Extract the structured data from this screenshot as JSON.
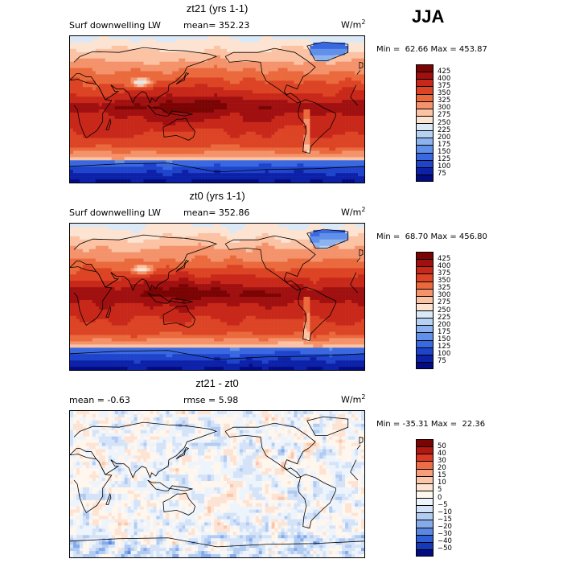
{
  "season": "JJA",
  "panels": [
    {
      "title": "zt21 (yrs 1-1)",
      "variable": "Surf downwelling LW",
      "stat1": "mean= 352.23",
      "stat2": "",
      "units": "W/m",
      "units_exp": "2",
      "min": "Min =  62.66",
      "max": "Max = 453.87",
      "colorbar_labels": [
        "425",
        "400",
        "375",
        "350",
        "325",
        "300",
        "275",
        "250",
        "225",
        "200",
        "175",
        "150",
        "125",
        "100",
        "75"
      ]
    },
    {
      "title": "zt0 (yrs 1-1)",
      "variable": "Surf downwelling LW",
      "stat1": "mean= 352.86",
      "stat2": "",
      "units": "W/m",
      "units_exp": "2",
      "min": "Min =  68.70",
      "max": "Max = 456.80",
      "colorbar_labels": [
        "425",
        "400",
        "375",
        "350",
        "325",
        "300",
        "275",
        "250",
        "225",
        "200",
        "175",
        "150",
        "125",
        "100",
        "75"
      ]
    },
    {
      "title": "zt21 - zt0",
      "variable": "",
      "stat1": "mean =   -0.63",
      "stat2": "rmse =    5.98",
      "units": "W/m",
      "units_exp": "2",
      "min": "Min = -35.31",
      "max": "Max =  22.36",
      "colorbar_labels": [
        "50",
        "40",
        "30",
        "20",
        "15",
        "10",
        "5",
        "0",
        "−5",
        "−10",
        "−15",
        "−20",
        "−30",
        "−40",
        "−50"
      ]
    }
  ],
  "colors": {
    "abs_scale": [
      "#7a0403",
      "#a01010",
      "#c8281a",
      "#dc4425",
      "#ea6a3d",
      "#f4936b",
      "#fbc2a4",
      "#fde4d2",
      "#dbe9f7",
      "#b6d1f2",
      "#8cb3ee",
      "#6190ea",
      "#3a68e0",
      "#1f44cc",
      "#0c21a8",
      "#020b82"
    ],
    "diff_scale": [
      "#7a0403",
      "#b01812",
      "#d93a26",
      "#ec6e48",
      "#f69d7b",
      "#fbc6aa",
      "#fde3d3",
      "#fff6ee",
      "#eef4fc",
      "#d4e3f7",
      "#b2cbf1",
      "#86abea",
      "#5b87e2",
      "#2f5fd7",
      "#1539b8",
      "#020b82"
    ],
    "coast": "#000000"
  }
}
